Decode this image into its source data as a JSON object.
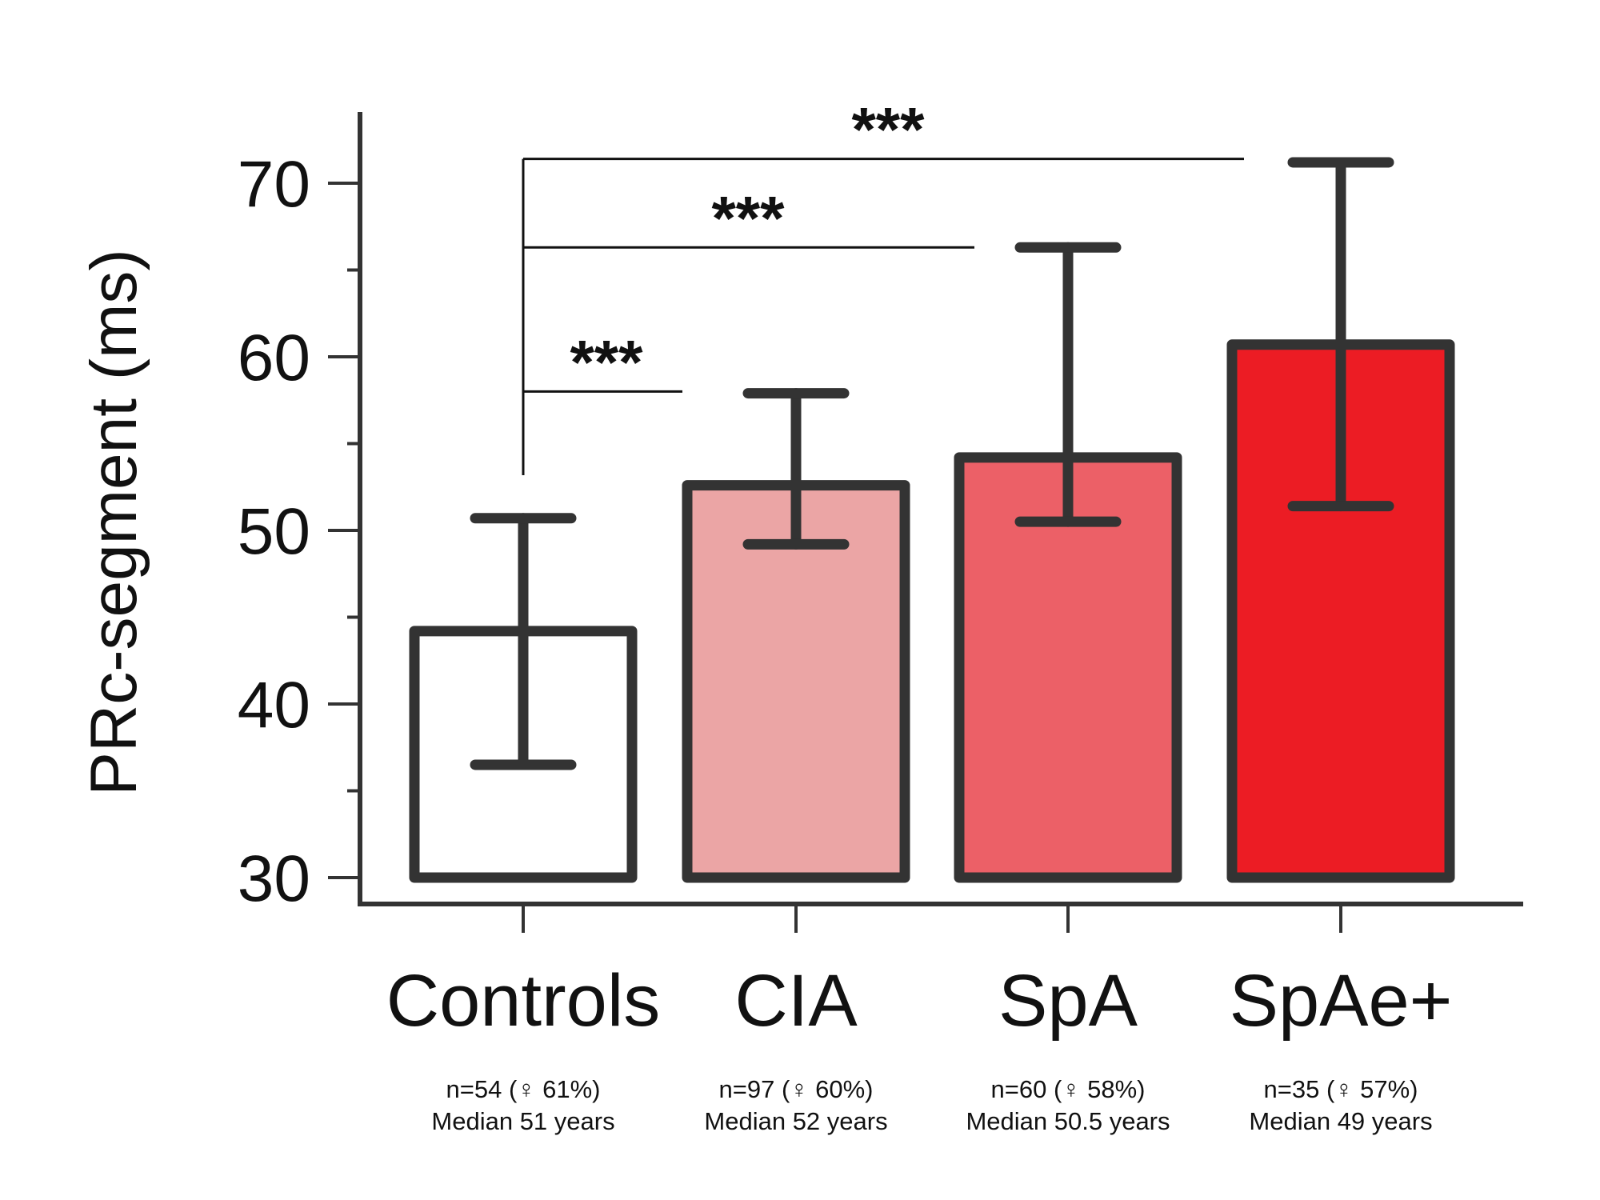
{
  "chart_data": {
    "type": "bar",
    "ylabel": "PRc-segment (ms)",
    "xlabel": "",
    "ylim": [
      30,
      74
    ],
    "yticks": [
      30,
      40,
      50,
      60,
      70
    ],
    "ytick_labels": [
      "30",
      "40",
      "50",
      "60",
      "70"
    ],
    "categories": [
      "Controls",
      "CIA",
      "SpA",
      "SpAe+"
    ],
    "values": [
      44.2,
      52.6,
      54.2,
      60.7
    ],
    "error_upper": [
      50.7,
      57.9,
      66.3,
      71.2
    ],
    "error_lower": [
      36.5,
      49.2,
      50.5,
      51.4
    ],
    "colors": [
      "#ffffff",
      "#eba5a5",
      "#ec6067",
      "#ec1c24"
    ],
    "group_info": [
      {
        "line1": "n=54 (♀ 61%)",
        "line2": "Median 51 years"
      },
      {
        "line1": "n=97 (♀ 60%)",
        "line2": "Median 52 years"
      },
      {
        "line1": "n=60 (♀ 58%)",
        "line2": "Median 50.5 years"
      },
      {
        "line1": "n=35 (♀ 57%)",
        "line2": "Median 49 years"
      }
    ],
    "significance": [
      {
        "from": "Controls",
        "to": "CIA",
        "label": "***",
        "level": 58
      },
      {
        "from": "Controls",
        "to": "SpA",
        "label": "***",
        "level": 66.3
      },
      {
        "from": "Controls",
        "to": "SpAe+",
        "label": "***",
        "level": 71.4
      }
    ]
  }
}
